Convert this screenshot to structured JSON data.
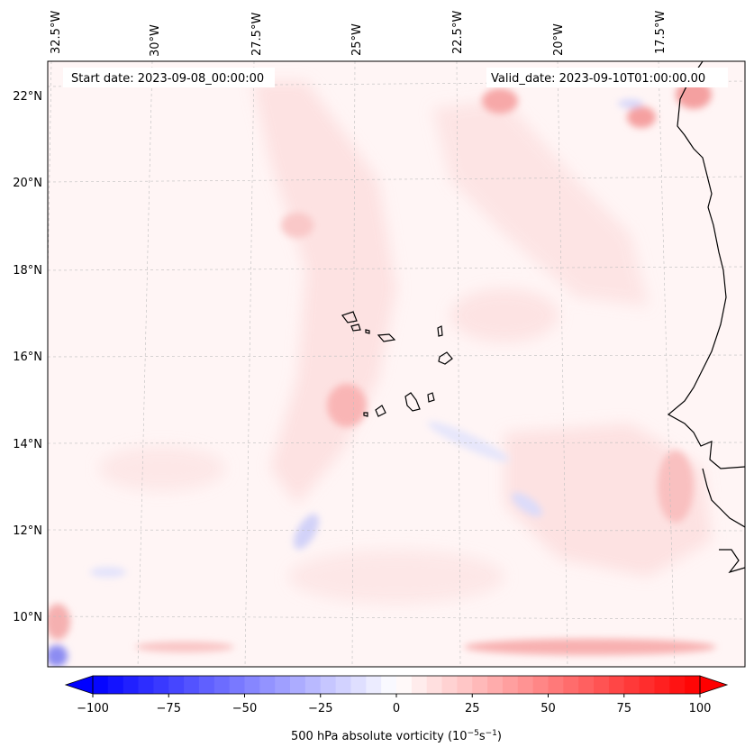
{
  "map": {
    "start_date": "Start date: 2023-09-08_00:00:00",
    "valid_date": "Valid_date: 2023-09-10T01:00:00.00",
    "lon_labels": [
      "32.5°W",
      "30°W",
      "27.5°W",
      "25°W",
      "22.5°W",
      "20°W",
      "17.5°W"
    ],
    "lat_labels": [
      "22°N",
      "20°N",
      "18°N",
      "16°N",
      "14°N",
      "12°N",
      "10°N"
    ],
    "land_outline_color": "#000000",
    "gridlines": true
  },
  "colorbar": {
    "ticks": [
      "−100",
      "−75",
      "−50",
      "−25",
      "0",
      "25",
      "50",
      "75",
      "100"
    ],
    "label": "500 hPa absolute vorticity (10",
    "label_exp1": "−5",
    "label_mid": "s",
    "label_exp2": "−1",
    "label_end": ")",
    "range": [
      -100,
      100
    ],
    "colormap": "bwr",
    "low_color": "#0000ff",
    "high_color": "#ff0000",
    "extend": "both"
  }
}
